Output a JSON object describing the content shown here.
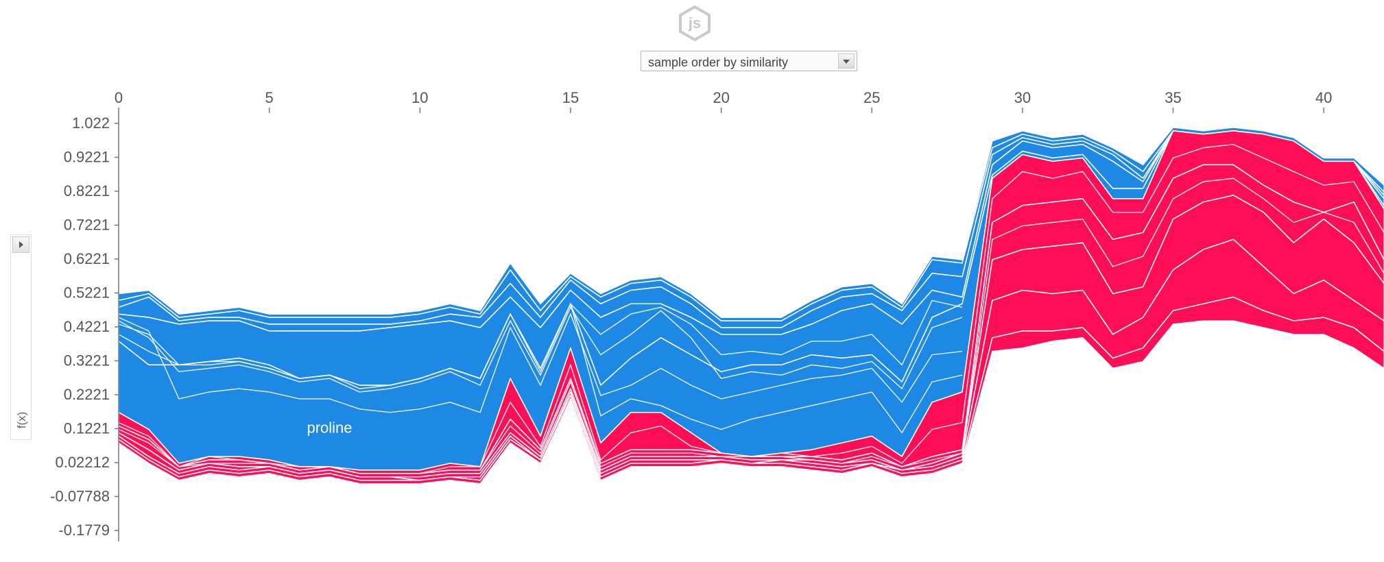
{
  "header": {
    "logo_text": "js",
    "logo_icon": "hexagon-js-logo-icon"
  },
  "controls": {
    "order_select": {
      "selected": "sample order by similarity"
    },
    "side_panel": {
      "label": "f(x)"
    }
  },
  "colors": {
    "negative": "#1e88e5",
    "positive": "#ff0d57",
    "separator": "#ffffff",
    "axis": "#777777"
  },
  "chart_data": {
    "type": "area",
    "subtype": "stacked additive force plot",
    "x_ticks": [
      "0",
      "5",
      "10",
      "15",
      "20",
      "25",
      "30",
      "35",
      "40"
    ],
    "y_ticks": [
      "1.022",
      "0.9221",
      "0.8221",
      "0.7221",
      "0.6221",
      "0.5221",
      "0.4221",
      "0.3221",
      "0.2221",
      "0.1221",
      "0.02212",
      "-0.07788",
      "-0.1779"
    ],
    "xlim": [
      0,
      42
    ],
    "ylim": [
      -0.18,
      1.022
    ],
    "annotations": [
      {
        "text": "proline",
        "x": 7,
        "y": 0.11
      }
    ],
    "x": [
      0,
      1,
      2,
      3,
      4,
      5,
      6,
      7,
      8,
      9,
      10,
      11,
      12,
      13,
      14,
      15,
      16,
      17,
      18,
      19,
      20,
      21,
      22,
      23,
      24,
      25,
      26,
      27,
      28,
      29,
      30,
      31,
      32,
      33,
      34,
      35,
      36,
      37,
      38,
      39,
      40,
      41,
      42
    ],
    "negative_bands": [
      {
        "top": [
          0.52,
          0.53,
          0.46,
          0.47,
          0.48,
          0.46,
          0.46,
          0.46,
          0.46,
          0.46,
          0.47,
          0.49,
          0.47,
          0.61,
          0.49,
          0.58,
          0.52,
          0.56,
          0.57,
          0.52,
          0.45,
          0.45,
          0.45,
          0.5,
          0.54,
          0.55,
          0.49,
          0.63,
          0.62,
          0.97,
          1.0,
          0.98,
          0.99,
          0.95,
          0.9,
          1.01,
          1.0,
          1.01,
          1.0,
          0.98,
          0.92,
          0.92,
          0.84
        ],
        "bottom": [
          0.5,
          0.52,
          0.45,
          0.46,
          0.47,
          0.45,
          0.45,
          0.45,
          0.45,
          0.45,
          0.46,
          0.48,
          0.46,
          0.59,
          0.47,
          0.57,
          0.51,
          0.55,
          0.56,
          0.51,
          0.44,
          0.44,
          0.44,
          0.49,
          0.53,
          0.54,
          0.48,
          0.62,
          0.61,
          0.95,
          0.99,
          0.97,
          0.98,
          0.94,
          0.88,
          1.0,
          0.99,
          1.0,
          0.99,
          0.97,
          0.91,
          0.91,
          0.82
        ]
      },
      {
        "top": [
          0.5,
          0.52,
          0.45,
          0.46,
          0.47,
          0.45,
          0.45,
          0.45,
          0.45,
          0.45,
          0.46,
          0.48,
          0.46,
          0.59,
          0.47,
          0.57,
          0.51,
          0.55,
          0.56,
          0.51,
          0.44,
          0.44,
          0.44,
          0.49,
          0.53,
          0.54,
          0.48,
          0.62,
          0.61,
          0.95,
          0.99,
          0.97,
          0.98,
          0.94,
          0.88,
          1.0,
          0.99,
          1.0,
          0.99,
          0.97,
          0.91,
          0.91,
          0.82
        ],
        "bottom": [
          0.48,
          0.51,
          0.44,
          0.45,
          0.45,
          0.43,
          0.43,
          0.43,
          0.43,
          0.43,
          0.44,
          0.46,
          0.45,
          0.55,
          0.45,
          0.56,
          0.49,
          0.53,
          0.54,
          0.49,
          0.42,
          0.42,
          0.42,
          0.47,
          0.51,
          0.52,
          0.47,
          0.58,
          0.57,
          0.93,
          0.98,
          0.96,
          0.97,
          0.93,
          0.86,
          1.0,
          0.99,
          1.0,
          0.99,
          0.97,
          0.91,
          0.91,
          0.81
        ]
      },
      {
        "top": [
          0.48,
          0.51,
          0.44,
          0.45,
          0.45,
          0.43,
          0.43,
          0.43,
          0.43,
          0.43,
          0.44,
          0.46,
          0.45,
          0.55,
          0.45,
          0.56,
          0.49,
          0.53,
          0.54,
          0.49,
          0.42,
          0.42,
          0.42,
          0.47,
          0.51,
          0.52,
          0.47,
          0.58,
          0.57,
          0.93,
          0.98,
          0.96,
          0.97,
          0.93,
          0.86,
          1.0,
          0.99,
          1.0,
          0.99,
          0.97,
          0.91,
          0.91,
          0.81
        ],
        "bottom": [
          0.46,
          0.45,
          0.43,
          0.44,
          0.44,
          0.41,
          0.41,
          0.41,
          0.41,
          0.42,
          0.43,
          0.44,
          0.42,
          0.51,
          0.42,
          0.53,
          0.45,
          0.49,
          0.49,
          0.45,
          0.4,
          0.4,
          0.4,
          0.43,
          0.47,
          0.49,
          0.43,
          0.53,
          0.51,
          0.9,
          0.97,
          0.95,
          0.96,
          0.91,
          0.85,
          1.0,
          0.99,
          1.0,
          0.99,
          0.97,
          0.91,
          0.91,
          0.8
        ]
      },
      {
        "top": [
          0.46,
          0.45,
          0.43,
          0.44,
          0.44,
          0.41,
          0.41,
          0.41,
          0.41,
          0.42,
          0.43,
          0.44,
          0.42,
          0.51,
          0.42,
          0.53,
          0.45,
          0.49,
          0.49,
          0.45,
          0.4,
          0.4,
          0.4,
          0.43,
          0.47,
          0.49,
          0.43,
          0.53,
          0.51,
          0.9,
          0.97,
          0.95,
          0.96,
          0.91,
          0.85,
          1.0,
          0.99,
          1.0,
          0.99,
          0.97,
          0.91,
          0.91,
          0.8
        ],
        "bottom": [
          0.38,
          0.31,
          0.31,
          0.32,
          0.33,
          0.31,
          0.27,
          0.28,
          0.25,
          0.25,
          0.27,
          0.3,
          0.27,
          0.46,
          0.3,
          0.49,
          0.25,
          0.33,
          0.39,
          0.34,
          0.29,
          0.31,
          0.31,
          0.34,
          0.33,
          0.34,
          0.26,
          0.45,
          0.49,
          0.87,
          0.94,
          0.92,
          0.93,
          0.83,
          0.83,
          1.0,
          0.99,
          1.0,
          0.99,
          0.97,
          0.91,
          0.91,
          0.78
        ]
      },
      {
        "top": [
          0.38,
          0.31,
          0.31,
          0.32,
          0.33,
          0.31,
          0.27,
          0.28,
          0.25,
          0.25,
          0.27,
          0.3,
          0.27,
          0.46,
          0.3,
          0.49,
          0.25,
          0.33,
          0.39,
          0.34,
          0.29,
          0.31,
          0.31,
          0.34,
          0.33,
          0.34,
          0.26,
          0.45,
          0.49,
          0.87,
          0.94,
          0.92,
          0.93,
          0.83,
          0.83,
          1.0,
          0.99,
          1.0,
          0.99,
          0.97,
          0.91,
          0.91,
          0.78
        ],
        "bottom": [
          0.17,
          0.12,
          0.02,
          0.04,
          0.04,
          0.03,
          0.01,
          0.01,
          0.0,
          0.0,
          0.0,
          0.02,
          0.01,
          0.27,
          0.1,
          0.36,
          0.08,
          0.17,
          0.17,
          0.11,
          0.05,
          0.04,
          0.05,
          0.06,
          0.08,
          0.1,
          0.04,
          0.2,
          0.23,
          0.86,
          0.93,
          0.91,
          0.92,
          0.8,
          0.8,
          1.0,
          0.99,
          1.0,
          0.99,
          0.97,
          0.91,
          0.91,
          0.77
        ]
      }
    ],
    "negative_lines": [
      [
        0.45,
        0.41,
        0.21,
        0.23,
        0.24,
        0.23,
        0.21,
        0.21,
        0.18,
        0.17,
        0.18,
        0.2,
        0.17,
        0.42,
        0.25,
        0.46,
        0.22,
        0.25,
        0.3,
        0.25,
        0.21,
        0.23,
        0.25,
        0.27,
        0.28,
        0.3,
        0.2,
        0.34,
        0.35
      ],
      [
        0.44,
        0.39,
        0.29,
        0.3,
        0.31,
        0.29,
        0.26,
        0.27,
        0.23,
        0.24,
        0.26,
        0.29,
        0.25,
        0.44,
        0.28,
        0.48,
        0.34,
        0.4,
        0.47,
        0.39,
        0.27,
        0.29,
        0.28,
        0.31,
        0.3,
        0.32,
        0.24,
        0.42,
        0.45
      ],
      [
        0.43,
        0.4,
        0.31,
        0.32,
        0.32,
        0.3,
        0.27,
        0.28,
        0.24,
        0.25,
        0.27,
        0.3,
        0.27,
        0.46,
        0.29,
        0.49,
        0.4,
        0.46,
        0.48,
        0.43,
        0.34,
        0.35,
        0.34,
        0.38,
        0.38,
        0.4,
        0.31,
        0.5,
        0.48
      ],
      [
        0.4,
        0.35,
        0.31,
        0.31,
        0.32,
        0.3,
        0.27,
        0.28,
        0.25,
        0.25,
        0.27,
        0.3,
        0.27,
        0.46,
        0.3,
        0.49,
        0.16,
        0.21,
        0.19,
        0.15,
        0.12,
        0.15,
        0.17,
        0.19,
        0.21,
        0.23,
        0.11,
        0.26,
        0.28
      ]
    ],
    "positive_bands": [
      {
        "top": [
          0.17,
          0.12,
          0.02,
          0.04,
          0.04,
          0.03,
          0.01,
          0.01,
          0.0,
          0.0,
          0.0,
          0.02,
          0.01,
          0.27,
          0.1,
          0.36,
          0.08,
          0.17,
          0.17,
          0.11,
          0.05,
          0.04,
          0.05,
          0.06,
          0.08,
          0.1,
          0.04,
          0.2,
          0.23,
          0.86,
          0.93,
          0.91,
          0.92,
          0.8,
          0.8,
          1.0,
          0.99,
          1.0,
          0.99,
          0.97,
          0.91,
          0.91,
          0.77
        ],
        "bottom": [
          0.13,
          0.09,
          0.01,
          0.03,
          0.03,
          0.02,
          0.0,
          0.01,
          -0.01,
          -0.01,
          -0.01,
          0.0,
          0.0,
          0.15,
          0.06,
          0.27,
          0.02,
          0.06,
          0.06,
          0.06,
          0.05,
          0.04,
          0.04,
          0.04,
          0.03,
          0.05,
          0.01,
          0.04,
          0.06,
          0.73,
          0.78,
          0.79,
          0.8,
          0.68,
          0.7,
          0.86,
          0.9,
          0.9,
          0.84,
          0.79,
          0.76,
          0.79,
          0.62
        ]
      },
      {
        "top": [
          0.13,
          0.09,
          0.01,
          0.03,
          0.03,
          0.02,
          0.0,
          0.01,
          -0.01,
          -0.01,
          -0.01,
          0.0,
          0.0,
          0.15,
          0.06,
          0.27,
          0.02,
          0.06,
          0.06,
          0.06,
          0.05,
          0.04,
          0.04,
          0.04,
          0.03,
          0.05,
          0.01,
          0.04,
          0.06,
          0.73,
          0.78,
          0.79,
          0.8,
          0.68,
          0.7,
          0.86,
          0.9,
          0.9,
          0.84,
          0.79,
          0.76,
          0.79,
          0.62
        ],
        "bottom": [
          0.11,
          0.06,
          0.0,
          0.02,
          0.01,
          0.01,
          -0.01,
          0.0,
          -0.02,
          -0.02,
          -0.02,
          -0.01,
          -0.01,
          0.11,
          0.04,
          0.24,
          0.0,
          0.04,
          0.04,
          0.04,
          0.04,
          0.03,
          0.03,
          0.03,
          0.02,
          0.03,
          0.0,
          0.02,
          0.05,
          0.62,
          0.65,
          0.66,
          0.67,
          0.52,
          0.54,
          0.74,
          0.79,
          0.81,
          0.76,
          0.67,
          0.74,
          0.67,
          0.55
        ]
      },
      {
        "top": [
          0.11,
          0.06,
          0.0,
          0.02,
          0.01,
          0.01,
          -0.01,
          0.0,
          -0.02,
          -0.02,
          -0.02,
          -0.01,
          -0.01,
          0.11,
          0.04,
          0.24,
          0.0,
          0.04,
          0.04,
          0.04,
          0.04,
          0.03,
          0.03,
          0.03,
          0.02,
          0.03,
          0.0,
          0.02,
          0.05,
          0.62,
          0.65,
          0.66,
          0.67,
          0.52,
          0.54,
          0.74,
          0.79,
          0.81,
          0.76,
          0.67,
          0.74,
          0.67,
          0.55
        ],
        "bottom": [
          0.1,
          0.04,
          -0.01,
          0.01,
          0.0,
          0.01,
          -0.01,
          0.0,
          -0.02,
          -0.02,
          -0.03,
          -0.02,
          -0.02,
          0.1,
          0.03,
          0.23,
          -0.01,
          0.03,
          0.03,
          0.03,
          0.03,
          0.02,
          0.03,
          0.02,
          0.01,
          0.02,
          0.0,
          0.01,
          0.04,
          0.5,
          0.53,
          0.52,
          0.53,
          0.4,
          0.45,
          0.59,
          0.65,
          0.68,
          0.6,
          0.52,
          0.56,
          0.5,
          0.44
        ]
      },
      {
        "top": [
          0.1,
          0.04,
          -0.01,
          0.01,
          0.0,
          0.01,
          -0.01,
          0.0,
          -0.02,
          -0.02,
          -0.03,
          -0.02,
          -0.02,
          0.1,
          0.03,
          0.23,
          -0.01,
          0.03,
          0.03,
          0.03,
          0.03,
          0.02,
          0.03,
          0.02,
          0.01,
          0.02,
          0.0,
          0.01,
          0.04,
          0.5,
          0.53,
          0.52,
          0.53,
          0.4,
          0.45,
          0.59,
          0.65,
          0.68,
          0.6,
          0.52,
          0.56,
          0.5,
          0.44
        ],
        "bottom": [
          0.09,
          0.03,
          -0.02,
          0.0,
          -0.01,
          0.0,
          -0.02,
          -0.01,
          -0.03,
          -0.03,
          -0.03,
          -0.02,
          -0.03,
          0.09,
          0.03,
          0.22,
          -0.02,
          0.02,
          0.02,
          0.02,
          0.03,
          0.02,
          0.02,
          0.01,
          0.0,
          0.02,
          -0.01,
          0.0,
          0.03,
          0.39,
          0.41,
          0.41,
          0.42,
          0.33,
          0.36,
          0.47,
          0.49,
          0.51,
          0.47,
          0.44,
          0.45,
          0.42,
          0.35
        ]
      },
      {
        "top": [
          0.09,
          0.03,
          -0.02,
          0.0,
          -0.01,
          0.0,
          -0.02,
          -0.01,
          -0.03,
          -0.03,
          -0.03,
          -0.02,
          -0.03,
          0.09,
          0.03,
          0.22,
          -0.02,
          0.02,
          0.02,
          0.02,
          0.03,
          0.02,
          0.02,
          0.01,
          0.0,
          0.02,
          -0.01,
          0.0,
          0.03,
          0.39,
          0.41,
          0.41,
          0.42,
          0.33,
          0.36,
          0.47,
          0.49,
          0.51,
          0.47,
          0.44,
          0.45,
          0.42,
          0.35
        ],
        "bottom": [
          0.08,
          0.02,
          -0.03,
          -0.01,
          -0.02,
          -0.01,
          -0.03,
          -0.02,
          -0.04,
          -0.04,
          -0.04,
          -0.03,
          -0.04,
          0.08,
          0.02,
          0.21,
          -0.03,
          0.01,
          0.01,
          0.01,
          0.02,
          0.01,
          0.01,
          0.0,
          -0.01,
          0.01,
          -0.02,
          -0.01,
          0.02,
          0.35,
          0.36,
          0.38,
          0.39,
          0.3,
          0.32,
          0.43,
          0.44,
          0.44,
          0.42,
          0.4,
          0.4,
          0.36,
          0.3
        ]
      }
    ],
    "positive_lines": [
      [
        0.14,
        0.1,
        0.01,
        0.04,
        0.03,
        0.02,
        0.01,
        0.01,
        -0.01,
        -0.01,
        -0.01,
        0.01,
        0.01,
        0.2,
        0.07,
        0.31,
        0.03,
        0.11,
        0.13,
        0.07,
        0.05,
        0.04,
        0.05,
        0.04,
        0.05,
        0.07,
        0.02,
        0.12,
        0.14,
        0.8,
        0.88,
        0.86,
        0.88,
        0.76,
        0.76,
        0.92,
        0.95,
        0.96,
        0.92,
        0.88,
        0.84,
        0.85,
        0.7
      ],
      [
        0.12,
        0.08,
        0.01,
        0.02,
        0.02,
        0.02,
        0.0,
        0.01,
        -0.01,
        -0.01,
        -0.01,
        0.0,
        0.0,
        0.13,
        0.05,
        0.26,
        0.01,
        0.05,
        0.05,
        0.05,
        0.04,
        0.04,
        0.04,
        0.03,
        0.02,
        0.04,
        0.01,
        0.03,
        0.05,
        0.68,
        0.72,
        0.73,
        0.74,
        0.6,
        0.63,
        0.8,
        0.85,
        0.86,
        0.8,
        0.73,
        0.76,
        0.73,
        0.58
      ]
    ]
  }
}
